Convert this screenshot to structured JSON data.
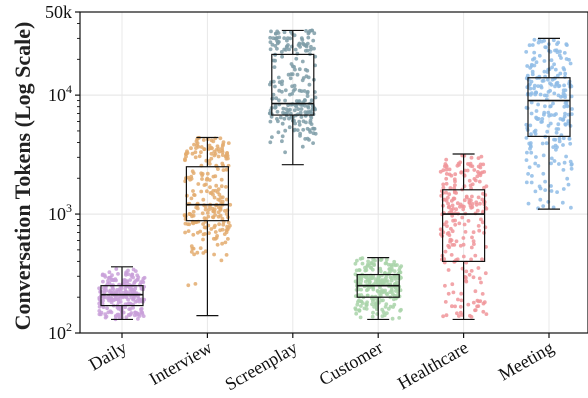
{
  "chart_data": {
    "type": "box",
    "ylabel": "Conversation Tokens (Log Scale)",
    "yscale": "log",
    "ylim": [
      100,
      50000
    ],
    "yticks": [
      {
        "value": 100,
        "base": "10",
        "exp": "2",
        "text": ""
      },
      {
        "value": 1000,
        "base": "10",
        "exp": "3",
        "text": ""
      },
      {
        "value": 10000,
        "base": "10",
        "exp": "4",
        "text": ""
      },
      {
        "value": 50000,
        "base": "",
        "exp": "",
        "text": "50k"
      }
    ],
    "grid": true,
    "categories": [
      "Daily",
      "Interview",
      "Screenplay",
      "Customer",
      "Healthcare",
      "Meeting"
    ],
    "boxes": [
      {
        "category": "Daily",
        "whisker_low": 130,
        "q1": 170,
        "median": 210,
        "q3": 250,
        "whisker_high": 360,
        "color": "#c9a0d9"
      },
      {
        "category": "Interview",
        "whisker_low": 140,
        "q1": 880,
        "median": 1200,
        "q3": 2500,
        "whisker_high": 4400,
        "color": "#e3ac6e"
      },
      {
        "category": "Screenplay",
        "whisker_low": 2600,
        "q1": 6800,
        "median": 8500,
        "q3": 22000,
        "whisker_high": 35000,
        "color": "#7f9ea8"
      },
      {
        "category": "Customer",
        "whisker_low": 130,
        "q1": 200,
        "median": 250,
        "q3": 310,
        "whisker_high": 430,
        "color": "#a9d4a9"
      },
      {
        "category": "Healthcare",
        "whisker_low": 130,
        "q1": 400,
        "median": 1000,
        "q3": 1600,
        "whisker_high": 3200,
        "color": "#f0959a"
      },
      {
        "category": "Meeting",
        "whisker_low": 1100,
        "q1": 4500,
        "median": 9000,
        "q3": 14000,
        "whisker_high": 30000,
        "color": "#8fbce6"
      }
    ]
  }
}
